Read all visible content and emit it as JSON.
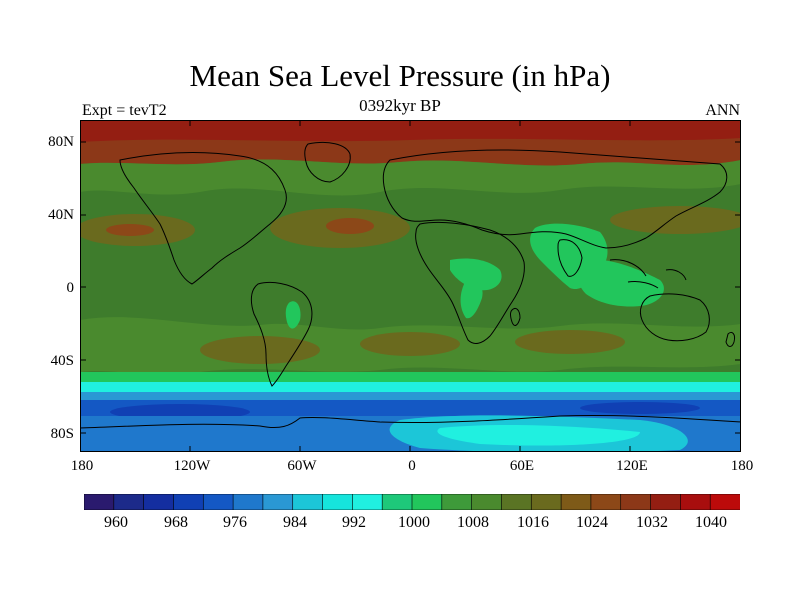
{
  "title": "Mean Sea Level Pressure (in hPa)",
  "subtitle": "0392kyr BP",
  "left_label": "Expt = tevT2",
  "right_label": "ANN",
  "lat_ticks": [
    "80N",
    "40N",
    "0",
    "40S",
    "80S"
  ],
  "lat_values": [
    80,
    40,
    0,
    -40,
    -80
  ],
  "lon_ticks": [
    "180",
    "120W",
    "60W",
    "0",
    "60E",
    "120E",
    "180"
  ],
  "lon_values": [
    -180,
    -120,
    -60,
    0,
    60,
    120,
    180
  ],
  "colorbar": {
    "labels": [
      "960",
      "968",
      "976",
      "984",
      "992",
      "1000",
      "1008",
      "1016",
      "1024",
      "1032",
      "1040"
    ],
    "colors": [
      "#2a1a6e",
      "#1c2a8a",
      "#142ea0",
      "#1040b4",
      "#1458c4",
      "#1f78cc",
      "#2a98d4",
      "#1cc6d8",
      "#16e4dc",
      "#20f0e0",
      "#1ec87a",
      "#22c65c",
      "#3e9a3a",
      "#4a8a2e",
      "#5a7424",
      "#6a6a1e",
      "#7e5a18",
      "#8c4818",
      "#8c3818",
      "#941e12",
      "#a80e0e",
      "#bc0a0a"
    ]
  },
  "map": {
    "projection": "cylindrical-equidistant",
    "lon_range": [
      -180,
      180
    ],
    "lat_range": [
      -90,
      90
    ],
    "colors": {
      "background_band": "#3e7c2c",
      "north_pole_high": "#8c3818",
      "subtropical_high": "#6a6a1e",
      "high_cells": "#8c4818",
      "low_pressure": "#22c65c",
      "southern_trough": "#20f0e0",
      "deep_low": "#1458c4",
      "antarctic": "#1f78cc",
      "coastline": "#000000"
    }
  }
}
